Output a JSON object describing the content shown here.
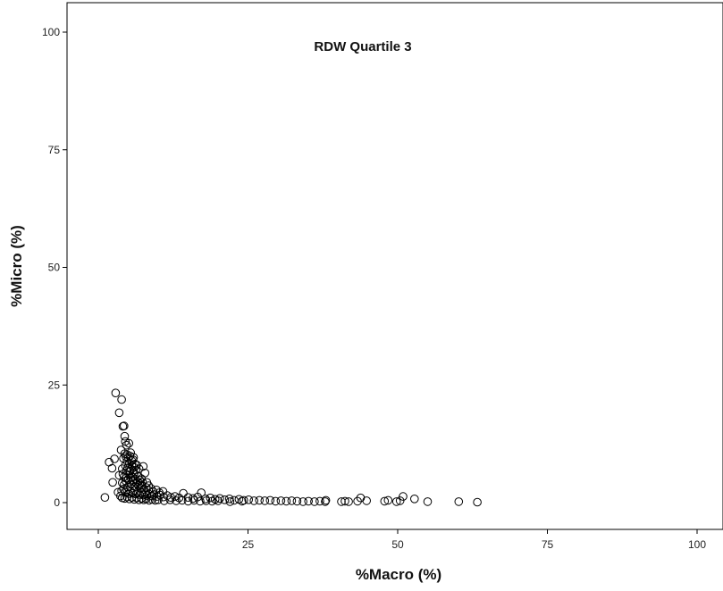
{
  "chart_data": {
    "type": "scatter",
    "title": "RDW Quartile 3",
    "xlabel": "%Macro (%)",
    "ylabel": "%Micro (%)",
    "xlim": [
      -5,
      100
    ],
    "ylim": [
      -5,
      105
    ],
    "xticks": [
      0,
      25,
      50,
      75,
      100
    ],
    "xtick_labels": [
      "0",
      "25",
      "50",
      "75",
      "100"
    ],
    "yticks": [
      0,
      25,
      50,
      75,
      100
    ],
    "ytick_labels": [
      "0",
      "25",
      "50",
      "75",
      "100"
    ],
    "grid": false,
    "legend": "none",
    "marker": "open-circle",
    "point_color": "#000000",
    "points": [
      [
        1.1,
        1.1
      ],
      [
        1.8,
        8.6
      ],
      [
        2.3,
        7.3
      ],
      [
        2.4,
        4.3
      ],
      [
        2.7,
        9.3
      ],
      [
        2.9,
        23.3
      ],
      [
        3.3,
        2.2
      ],
      [
        3.5,
        19.1
      ],
      [
        3.5,
        5.8
      ],
      [
        3.8,
        11.2
      ],
      [
        3.9,
        21.9
      ],
      [
        4.1,
        16.2
      ],
      [
        4.3,
        16.3
      ],
      [
        4.4,
        14.1
      ],
      [
        4.5,
        13.0
      ],
      [
        4.7,
        12.2
      ],
      [
        5.1,
        12.6
      ],
      [
        4.0,
        7.2
      ],
      [
        4.2,
        9.4
      ],
      [
        4.4,
        10.4
      ],
      [
        4.6,
        9.8
      ],
      [
        4.8,
        10.2
      ],
      [
        5.0,
        9.6
      ],
      [
        5.3,
        9.9
      ],
      [
        5.6,
        8.9
      ],
      [
        5.9,
        9.6
      ],
      [
        6.1,
        8.2
      ],
      [
        4.1,
        6.1
      ],
      [
        4.3,
        5.5
      ],
      [
        4.5,
        7.9
      ],
      [
        4.7,
        6.8
      ],
      [
        4.9,
        7.4
      ],
      [
        5.1,
        5.9
      ],
      [
        5.3,
        6.7
      ],
      [
        5.5,
        7.1
      ],
      [
        5.7,
        5.4
      ],
      [
        6.0,
        6.3
      ],
      [
        6.3,
        6.9
      ],
      [
        6.6,
        5.6
      ],
      [
        6.9,
        4.8
      ],
      [
        7.2,
        5.1
      ],
      [
        7.5,
        7.7
      ],
      [
        7.8,
        6.3
      ],
      [
        8.1,
        4.3
      ],
      [
        8.4,
        3.6
      ],
      [
        4.0,
        4.2
      ],
      [
        4.3,
        3.8
      ],
      [
        4.6,
        4.6
      ],
      [
        4.9,
        3.3
      ],
      [
        5.2,
        4.4
      ],
      [
        5.5,
        3.9
      ],
      [
        5.8,
        4.8
      ],
      [
        6.1,
        3.4
      ],
      [
        6.4,
        4.1
      ],
      [
        6.7,
        3.6
      ],
      [
        7.0,
        3.1
      ],
      [
        7.3,
        3.7
      ],
      [
        7.6,
        2.8
      ],
      [
        8.0,
        3.2
      ],
      [
        8.4,
        2.6
      ],
      [
        8.8,
        3.0
      ],
      [
        9.2,
        2.3
      ],
      [
        9.7,
        2.7
      ],
      [
        10.2,
        2.1
      ],
      [
        10.8,
        2.4
      ],
      [
        3.9,
        2.5
      ],
      [
        4.2,
        2.9
      ],
      [
        4.5,
        2.2
      ],
      [
        4.8,
        2.7
      ],
      [
        5.1,
        1.9
      ],
      [
        5.4,
        2.4
      ],
      [
        5.7,
        2.0
      ],
      [
        6.0,
        2.6
      ],
      [
        6.3,
        1.8
      ],
      [
        6.6,
        2.3
      ],
      [
        6.9,
        1.7
      ],
      [
        7.2,
        2.1
      ],
      [
        7.5,
        1.6
      ],
      [
        7.8,
        1.9
      ],
      [
        8.1,
        1.5
      ],
      [
        8.5,
        1.8
      ],
      [
        8.9,
        1.4
      ],
      [
        9.3,
        1.7
      ],
      [
        9.8,
        1.3
      ],
      [
        10.3,
        1.6
      ],
      [
        10.9,
        1.2
      ],
      [
        11.5,
        1.5
      ],
      [
        12.1,
        1.1
      ],
      [
        12.8,
        1.3
      ],
      [
        13.5,
        1.0
      ],
      [
        14.2,
        2.0
      ],
      [
        15.0,
        1.1
      ],
      [
        15.8,
        0.9
      ],
      [
        16.6,
        1.2
      ],
      [
        17.2,
        2.1
      ],
      [
        17.9,
        0.8
      ],
      [
        18.7,
        1.0
      ],
      [
        19.5,
        0.7
      ],
      [
        20.3,
        0.9
      ],
      [
        21.1,
        0.6
      ],
      [
        21.9,
        0.8
      ],
      [
        22.7,
        0.5
      ],
      [
        23.5,
        0.7
      ],
      [
        24.3,
        0.5
      ],
      [
        25.1,
        0.6
      ],
      [
        26.0,
        0.4
      ],
      [
        26.9,
        0.5
      ],
      [
        27.8,
        0.4
      ],
      [
        28.7,
        0.5
      ],
      [
        29.6,
        0.3
      ],
      [
        30.5,
        0.4
      ],
      [
        31.4,
        0.3
      ],
      [
        32.3,
        0.4
      ],
      [
        33.2,
        0.3
      ],
      [
        34.2,
        0.2
      ],
      [
        35.1,
        0.3
      ],
      [
        36.1,
        0.2
      ],
      [
        37.0,
        0.3
      ],
      [
        37.9,
        0.2
      ],
      [
        38.0,
        0.5
      ],
      [
        40.6,
        0.2
      ],
      [
        41.2,
        0.3
      ],
      [
        41.8,
        0.2
      ],
      [
        43.3,
        0.3
      ],
      [
        43.8,
        1.0
      ],
      [
        44.8,
        0.4
      ],
      [
        47.8,
        0.3
      ],
      [
        48.4,
        0.5
      ],
      [
        49.8,
        0.2
      ],
      [
        50.4,
        0.4
      ],
      [
        50.9,
        1.3
      ],
      [
        52.8,
        0.8
      ],
      [
        55.0,
        0.2
      ],
      [
        60.2,
        0.2
      ],
      [
        63.3,
        0.1
      ],
      [
        3.7,
        1.4
      ],
      [
        4.0,
        1.0
      ],
      [
        4.4,
        0.9
      ],
      [
        4.8,
        1.2
      ],
      [
        5.2,
        0.8
      ],
      [
        5.6,
        1.1
      ],
      [
        6.0,
        0.7
      ],
      [
        6.4,
        1.0
      ],
      [
        6.8,
        0.6
      ],
      [
        7.2,
        0.9
      ],
      [
        7.6,
        0.6
      ],
      [
        8.0,
        0.8
      ],
      [
        8.5,
        0.5
      ],
      [
        9.0,
        0.7
      ],
      [
        9.5,
        0.5
      ],
      [
        10.0,
        0.6
      ],
      [
        11.0,
        0.4
      ],
      [
        12.0,
        0.6
      ],
      [
        13.0,
        0.4
      ],
      [
        14.0,
        0.5
      ],
      [
        15.0,
        0.3
      ],
      [
        16.0,
        0.5
      ],
      [
        17.0,
        0.3
      ],
      [
        18.0,
        0.4
      ],
      [
        19.0,
        0.3
      ],
      [
        20.0,
        0.4
      ],
      [
        22.0,
        0.2
      ],
      [
        24.0,
        0.3
      ],
      [
        4.6,
        5.2
      ],
      [
        5.0,
        4.9
      ],
      [
        5.4,
        5.3
      ],
      [
        5.8,
        4.5
      ],
      [
        6.2,
        5.0
      ],
      [
        6.6,
        4.4
      ],
      [
        7.0,
        4.0
      ],
      [
        7.4,
        4.3
      ],
      [
        5.2,
        8.3
      ],
      [
        5.6,
        7.8
      ],
      [
        6.0,
        7.5
      ],
      [
        6.4,
        8.0
      ],
      [
        6.8,
        7.2
      ],
      [
        4.8,
        8.8
      ],
      [
        5.4,
        10.6
      ],
      [
        5.8,
        9.1
      ]
    ]
  }
}
